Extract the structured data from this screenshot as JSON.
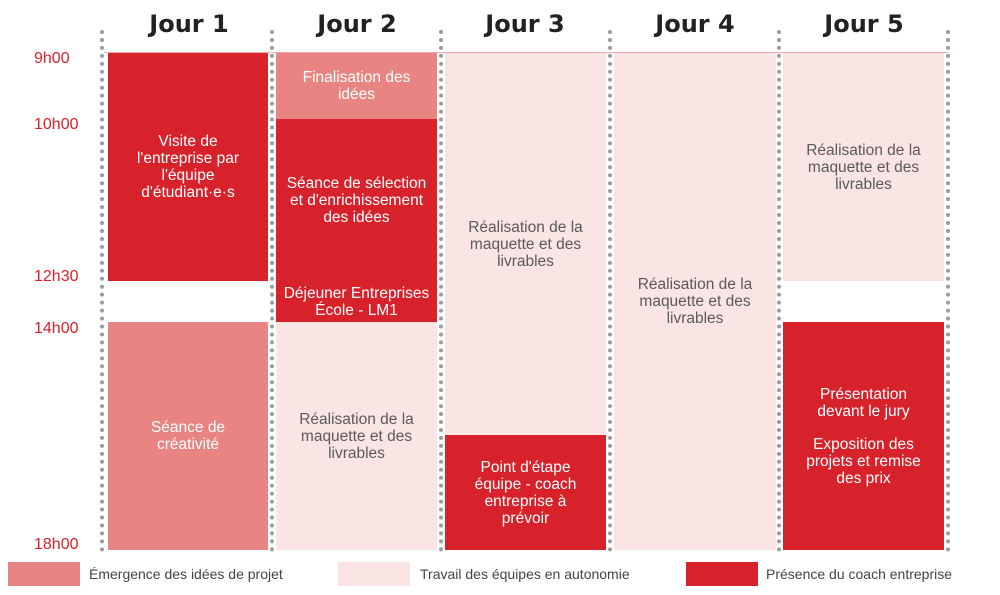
{
  "days": [
    "Jour 1",
    "Jour 2",
    "Jour 3",
    "Jour 4",
    "Jour 5"
  ],
  "times": [
    "9h00",
    "10h00",
    "12h30",
    "14h00",
    "18h00"
  ],
  "blocks": {
    "d1_am": "Visite de l'entreprise par l'équipe d'étudiant·e·s",
    "d1_pm": "Séance de créativité",
    "d2_finalisation": "Finalisation des idées",
    "d2_selection": "Séance de sélection et d'enrichissement des idées",
    "d2_dejeuner": "Déjeuner Entreprises École - LM1",
    "d2_pm": "Réalisation de la maquette et des livrables",
    "d3_main": "Réalisation de la maquette et des livrables",
    "d3_point": "Point d'étape équipe - coach entreprise à prévoir",
    "d4_main": "Réalisation de la maquette et des livrables",
    "d5_am": "Réalisation de la maquette et des livrables",
    "d5_presentation": "Présentation devant le jury",
    "d5_exposition": "Exposition des projets et remise des prix"
  },
  "legend": [
    {
      "label": "Émergence des idées de projet",
      "color": "#e88582"
    },
    {
      "label": "Travail des équipes en autonomie",
      "color": "#fbe4e4"
    },
    {
      "label": "Présence du coach entreprise",
      "color": "#d7212b"
    }
  ],
  "colors": {
    "accent": "#d7212b",
    "medium": "#e88582",
    "light": "#fbe4e4",
    "separator": "#9c9c9c"
  }
}
